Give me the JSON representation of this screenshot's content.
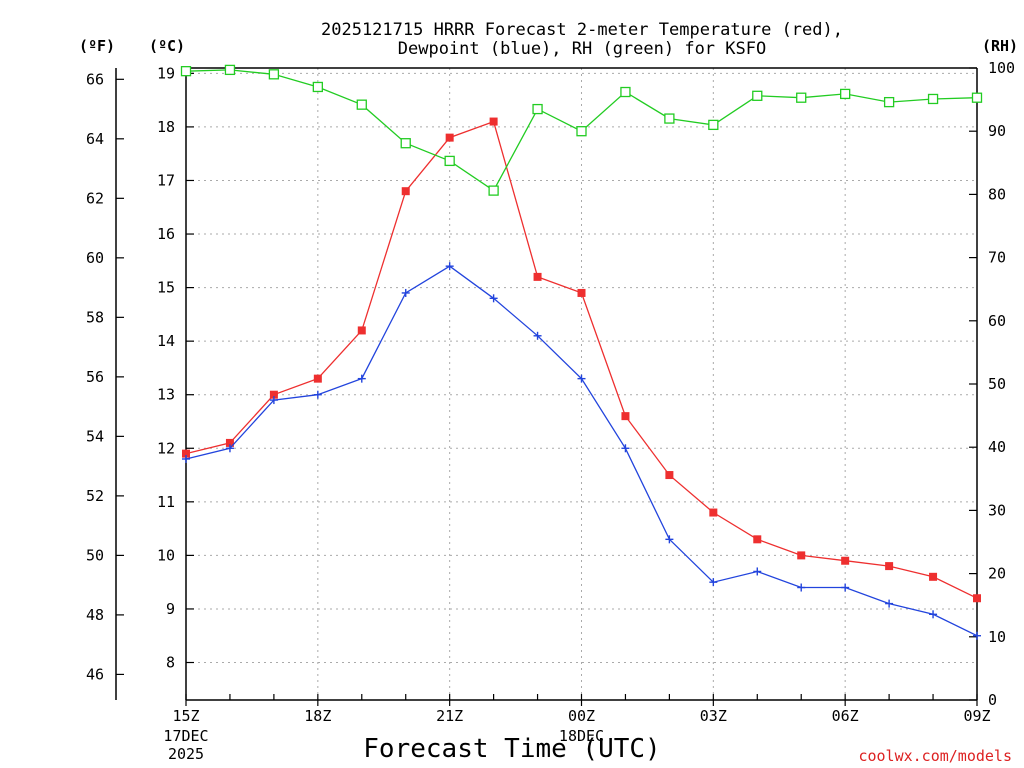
{
  "chart_data": {
    "type": "line",
    "title": [
      "2025121715 HRRR Forecast 2-meter Temperature (red),",
      "Dewpoint (blue), RH (green) for KSFO"
    ],
    "xlabel": "Forecast Time (UTC)",
    "credit": "coolwx.com/models",
    "units": {
      "fahrenheit": "(ºF)",
      "celsius": "(ºC)",
      "rh": "(RH)"
    },
    "x": [
      "15Z",
      "16Z",
      "17Z",
      "18Z",
      "19Z",
      "20Z",
      "21Z",
      "22Z",
      "23Z",
      "00Z",
      "01Z",
      "02Z",
      "03Z",
      "04Z",
      "05Z",
      "06Z",
      "07Z",
      "08Z",
      "09Z"
    ],
    "x_ticks": [
      {
        "label": "15Z",
        "index": 0,
        "sub": [
          "17DEC",
          "2025"
        ]
      },
      {
        "label": "18Z",
        "index": 3,
        "sub": []
      },
      {
        "label": "21Z",
        "index": 6,
        "sub": []
      },
      {
        "label": "00Z",
        "index": 9,
        "sub": [
          "18DEC"
        ]
      },
      {
        "label": "03Z",
        "index": 12,
        "sub": []
      },
      {
        "label": "06Z",
        "index": 15,
        "sub": []
      },
      {
        "label": "09Z",
        "index": 18,
        "sub": []
      }
    ],
    "ylim_c": [
      7.3,
      19.1
    ],
    "ylim_rh": [
      0,
      100
    ],
    "y_ticks_f": [
      "46",
      "48",
      "50",
      "52",
      "54",
      "56",
      "58",
      "60",
      "62",
      "64",
      "66"
    ],
    "y_ticks_c": [
      "8",
      "9",
      "10",
      "11",
      "12",
      "13",
      "14",
      "15",
      "16",
      "17",
      "18",
      "19"
    ],
    "y_ticks_rh": [
      "0",
      "10",
      "20",
      "30",
      "40",
      "50",
      "60",
      "70",
      "80",
      "90",
      "100"
    ],
    "series": [
      {
        "name": "Temperature",
        "axis": "celsius",
        "color": "#ee2f2f",
        "marker": "filled-square",
        "values": [
          11.9,
          12.1,
          13.0,
          13.3,
          14.2,
          16.8,
          17.8,
          18.1,
          15.2,
          14.9,
          12.6,
          11.5,
          10.8,
          10.3,
          10.0,
          9.9,
          9.8,
          9.6,
          9.2
        ]
      },
      {
        "name": "Dewpoint",
        "axis": "celsius",
        "color": "#2244dd",
        "marker": "plus",
        "values": [
          11.8,
          12.0,
          12.9,
          13.0,
          13.3,
          14.9,
          15.4,
          14.8,
          14.1,
          13.3,
          12.0,
          10.3,
          9.5,
          9.7,
          9.4,
          9.4,
          9.1,
          8.9,
          8.5
        ]
      },
      {
        "name": "RH",
        "axis": "rh",
        "color": "#22cc22",
        "marker": "open-square",
        "values": [
          99.5,
          99.7,
          99.0,
          97.0,
          94.2,
          88.1,
          85.3,
          80.6,
          93.5,
          90.0,
          96.2,
          92.0,
          91.0,
          95.6,
          95.3,
          95.9,
          94.6,
          95.1,
          95.3
        ]
      }
    ]
  }
}
